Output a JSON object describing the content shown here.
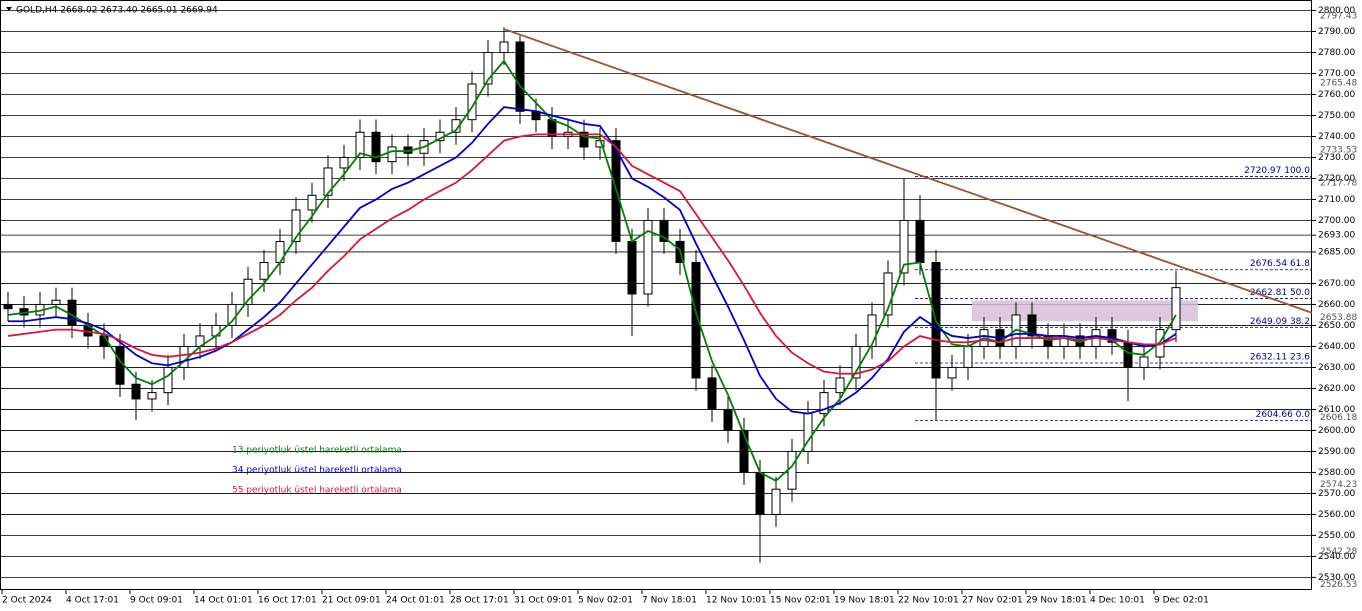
{
  "chart_data": {
    "type": "candlestick",
    "title": "GOLD,H4  2668.02 2673.40 2665.01 2669.94",
    "x_labels": [
      "2 Oct 2024",
      "4 Oct 17:01",
      "9 Oct 09:01",
      "14 Oct 01:01",
      "16 Oct 17:01",
      "21 Oct 09:01",
      "24 Oct 01:01",
      "28 Oct 17:01",
      "31 Oct 09:01",
      "5 Nov 02:01",
      "7 Nov 18:01",
      "12 Nov 10:01",
      "15 Nov 02:01",
      "19 Nov 18:01",
      "22 Nov 10:01",
      "27 Nov 02:01",
      "29 Nov 18:01",
      "4 Dec 10:01",
      "9 Dec 02:01"
    ],
    "open": [
      2660,
      2658,
      2655,
      2660,
      2662,
      2650,
      2645,
      2640,
      2622,
      2615,
      2618,
      2630,
      2640,
      2645,
      2650,
      2660,
      2672,
      2680,
      2690,
      2705,
      2712,
      2725,
      2730,
      2742,
      2728,
      2735,
      2732,
      2738,
      2742,
      2748,
      2765,
      2780,
      2785,
      2752,
      2748,
      2740,
      2742,
      2735,
      2738,
      2690,
      2665,
      2700,
      2690,
      2680,
      2625,
      2610,
      2600,
      2580,
      2560,
      2572,
      2590,
      2608,
      2618,
      2625,
      2640,
      2655,
      2675,
      2700,
      2680,
      2625,
      2630,
      2640,
      2648,
      2640,
      2655,
      2645,
      2640,
      2645,
      2640,
      2648,
      2642,
      2630,
      2635,
      2648
    ],
    "high": [
      2666,
      2664,
      2666,
      2668,
      2668,
      2656,
      2651,
      2646,
      2628,
      2624,
      2636,
      2646,
      2651,
      2656,
      2666,
      2678,
      2686,
      2696,
      2711,
      2718,
      2731,
      2736,
      2748,
      2748,
      2741,
      2741,
      2744,
      2748,
      2754,
      2771,
      2786,
      2792,
      2788,
      2758,
      2754,
      2748,
      2748,
      2744,
      2744,
      2696,
      2706,
      2706,
      2696,
      2686,
      2631,
      2616,
      2606,
      2586,
      2578,
      2596,
      2614,
      2624,
      2631,
      2646,
      2661,
      2681,
      2720,
      2712,
      2686,
      2636,
      2646,
      2654,
      2654,
      2661,
      2661,
      2651,
      2651,
      2651,
      2654,
      2654,
      2648,
      2641,
      2654,
      2676
    ],
    "low": [
      2652,
      2649,
      2649,
      2654,
      2644,
      2639,
      2634,
      2616,
      2605,
      2609,
      2612,
      2624,
      2634,
      2639,
      2644,
      2654,
      2666,
      2674,
      2684,
      2699,
      2706,
      2719,
      2724,
      2722,
      2722,
      2726,
      2726,
      2732,
      2736,
      2742,
      2759,
      2774,
      2746,
      2742,
      2734,
      2734,
      2729,
      2729,
      2684,
      2645,
      2659,
      2684,
      2674,
      2619,
      2604,
      2594,
      2574,
      2537,
      2554,
      2566,
      2584,
      2602,
      2612,
      2619,
      2634,
      2649,
      2669,
      2674,
      2605,
      2619,
      2624,
      2634,
      2634,
      2634,
      2639,
      2634,
      2634,
      2634,
      2634,
      2636,
      2614,
      2624,
      2629,
      2642
    ],
    "close": [
      2658,
      2655,
      2660,
      2662,
      2650,
      2645,
      2640,
      2622,
      2615,
      2618,
      2630,
      2640,
      2645,
      2650,
      2660,
      2672,
      2680,
      2690,
      2705,
      2712,
      2725,
      2730,
      2742,
      2728,
      2735,
      2732,
      2738,
      2742,
      2748,
      2765,
      2780,
      2785,
      2752,
      2748,
      2740,
      2742,
      2735,
      2738,
      2690,
      2665,
      2700,
      2690,
      2680,
      2625,
      2610,
      2600,
      2580,
      2560,
      2572,
      2590,
      2608,
      2618,
      2625,
      2640,
      2655,
      2675,
      2700,
      2680,
      2625,
      2630,
      2640,
      2648,
      2640,
      2655,
      2645,
      2640,
      2645,
      2640,
      2648,
      2642,
      2630,
      2635,
      2648,
      2668
    ],
    "series": [
      {
        "name": "13 periyotluk üstel hareketli ortalama",
        "color": "#008000",
        "values": [
          2655,
          2656,
          2657,
          2659,
          2655,
          2650,
          2645,
          2633,
          2625,
          2622,
          2626,
          2633,
          2640,
          2645,
          2652,
          2662,
          2670,
          2680,
          2692,
          2702,
          2713,
          2722,
          2732,
          2730,
          2733,
          2733,
          2735,
          2739,
          2743,
          2754,
          2767,
          2776,
          2764,
          2756,
          2748,
          2745,
          2740,
          2739,
          2715,
          2690,
          2695,
          2692,
          2686,
          2656,
          2633,
          2617,
          2598,
          2580,
          2576,
          2583,
          2595,
          2606,
          2615,
          2628,
          2641,
          2658,
          2679,
          2680,
          2652,
          2641,
          2640,
          2644,
          2642,
          2648,
          2646,
          2643,
          2644,
          2642,
          2645,
          2643,
          2637,
          2636,
          2642,
          2655
        ]
      },
      {
        "name": "34 periyotluk üstel hareketli ortalama",
        "color": "#0000cd",
        "values": [
          2652,
          2652,
          2653,
          2654,
          2653,
          2651,
          2648,
          2642,
          2636,
          2632,
          2631,
          2633,
          2635,
          2638,
          2642,
          2648,
          2654,
          2661,
          2670,
          2679,
          2688,
          2697,
          2706,
          2710,
          2715,
          2718,
          2722,
          2726,
          2730,
          2737,
          2746,
          2754,
          2753,
          2752,
          2750,
          2748,
          2746,
          2745,
          2734,
          2720,
          2716,
          2711,
          2705,
          2689,
          2674,
          2659,
          2643,
          2626,
          2615,
          2609,
          2608,
          2610,
          2613,
          2618,
          2625,
          2634,
          2647,
          2654,
          2649,
          2645,
          2644,
          2645,
          2644,
          2646,
          2646,
          2645,
          2645,
          2644,
          2645,
          2644,
          2642,
          2640,
          2641,
          2646
        ]
      },
      {
        "name": "55 periyotluk üstel hareketli ortalama",
        "color": "#dc143c",
        "values": [
          2645,
          2646,
          2647,
          2648,
          2648,
          2647,
          2646,
          2643,
          2639,
          2636,
          2635,
          2636,
          2637,
          2639,
          2642,
          2646,
          2650,
          2655,
          2662,
          2668,
          2676,
          2683,
          2691,
          2696,
          2701,
          2705,
          2710,
          2714,
          2718,
          2724,
          2731,
          2738,
          2740,
          2741,
          2741,
          2741,
          2741,
          2741,
          2735,
          2726,
          2722,
          2718,
          2714,
          2703,
          2692,
          2681,
          2669,
          2656,
          2645,
          2637,
          2632,
          2628,
          2627,
          2627,
          2629,
          2633,
          2640,
          2645,
          2643,
          2642,
          2642,
          2643,
          2642,
          2644,
          2644,
          2644,
          2644,
          2643,
          2644,
          2643,
          2642,
          2641,
          2641,
          2644
        ]
      }
    ],
    "trendline": {
      "color": "#a0522d",
      "values": [
        2791,
        2656
      ]
    },
    "zone": {
      "color": "#d8bfd8",
      "values": [
        2652,
        2662
      ]
    },
    "fib_levels": [
      {
        "value": 2720.97,
        "label": "2720.97 100.0"
      },
      {
        "value": 2676.54,
        "label": "2676.54 61.8"
      },
      {
        "value": 2662.81,
        "label": "2662.81 50.0"
      },
      {
        "value": 2649.09,
        "label": "2649.09 38.2"
      },
      {
        "value": 2632.11,
        "label": "2632.11 23.6"
      },
      {
        "value": 2604.66,
        "label": "2604.66 0.0"
      }
    ],
    "ylim": [
      2524,
      2805
    ],
    "yticks": [
      {
        "value": 2800,
        "label": "2800.00"
      },
      {
        "value": 2790,
        "label": "2790.00"
      },
      {
        "value": 2780,
        "label": "2780.00"
      },
      {
        "value": 2770,
        "label": "2770.00"
      },
      {
        "value": 2760,
        "label": "2760.00"
      },
      {
        "value": 2750,
        "label": "2750.00"
      },
      {
        "value": 2740,
        "label": "2740.00"
      },
      {
        "value": 2730,
        "label": "2730.00"
      },
      {
        "value": 2720,
        "label": "2720.00"
      },
      {
        "value": 2710,
        "label": "2710.00"
      },
      {
        "value": 2700,
        "label": "2700.00"
      },
      {
        "value": 2693,
        "label": "2693.00"
      },
      {
        "value": 2685,
        "label": "2685.00"
      },
      {
        "value": 2670,
        "label": "2670.00"
      },
      {
        "value": 2660,
        "label": "2660.00"
      },
      {
        "value": 2650,
        "label": "2650.00"
      },
      {
        "value": 2640,
        "label": "2640.00"
      },
      {
        "value": 2630,
        "label": "2630.00"
      },
      {
        "value": 2620,
        "label": "2620.00"
      },
      {
        "value": 2610,
        "label": "2610.00"
      },
      {
        "value": 2600,
        "label": "2600.00"
      },
      {
        "value": 2590,
        "label": "2590.00"
      },
      {
        "value": 2580,
        "label": "2580.00"
      },
      {
        "value": 2570,
        "label": "2570.00"
      },
      {
        "value": 2560,
        "label": "2560.00"
      },
      {
        "value": 2550,
        "label": "2550.00"
      },
      {
        "value": 2540,
        "label": "2540.00"
      },
      {
        "value": 2530,
        "label": "2530.00"
      }
    ],
    "minor_yticks": [
      2797.43,
      2765.48,
      2733.53,
      2717.78,
      2653.88,
      2606.18,
      2574.23,
      2542.28,
      2526.53
    ],
    "grid": true
  }
}
